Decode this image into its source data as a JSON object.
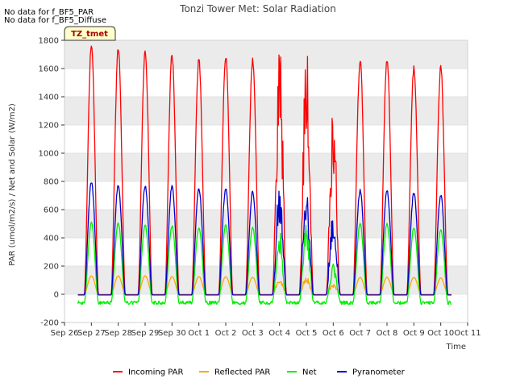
{
  "notes": [
    "No data for f_BF5_PAR",
    "No data for f_BF5_Diffuse"
  ],
  "tz_label": "TZ_tmet",
  "chart_data": {
    "type": "line",
    "title": "Tonzi Tower Met: Solar Radiation",
    "xlabel": "Time",
    "ylabel": "PAR (umol/m2/s) / Net and Solar (W/m2)",
    "ylim": [
      -200,
      1800
    ],
    "yticks": [
      -200,
      0,
      200,
      400,
      600,
      800,
      1000,
      1200,
      1400,
      1600,
      1800
    ],
    "xlim": [
      0,
      15
    ],
    "xtick_labels": [
      "Sep 26",
      "Sep 27",
      "Sep 28",
      "Sep 29",
      "Sep 30",
      "Oct 1",
      "Oct 2",
      "Oct 3",
      "Oct 4",
      "Oct 5",
      "Oct 6",
      "Oct 7",
      "Oct 8",
      "Oct 9",
      "Oct 10",
      "Oct 11"
    ],
    "grid": true,
    "legend_position": "bottom",
    "daily_peaks": [
      {
        "day": "Sep 27",
        "incoming_par": 1760,
        "reflected_par": 130,
        "net": 505,
        "pyranometer": 800
      },
      {
        "day": "Sep 28",
        "incoming_par": 1730,
        "reflected_par": 130,
        "net": 500,
        "pyranometer": 775
      },
      {
        "day": "Sep 29",
        "incoming_par": 1710,
        "reflected_par": 130,
        "net": 490,
        "pyranometer": 765
      },
      {
        "day": "Sep 30",
        "incoming_par": 1700,
        "reflected_par": 125,
        "net": 485,
        "pyranometer": 765
      },
      {
        "day": "Oct 1",
        "incoming_par": 1665,
        "reflected_par": 125,
        "net": 475,
        "pyranometer": 750
      },
      {
        "day": "Oct 2",
        "incoming_par": 1690,
        "reflected_par": 125,
        "net": 490,
        "pyranometer": 750
      },
      {
        "day": "Oct 3",
        "incoming_par": 1660,
        "reflected_par": 120,
        "net": 475,
        "pyranometer": 725
      },
      {
        "day": "Oct 4",
        "incoming_par": 1650,
        "reflected_par": 115,
        "net": 420,
        "pyranometer": 720
      },
      {
        "day": "Oct 5",
        "incoming_par": 1650,
        "reflected_par": 120,
        "net": 480,
        "pyranometer": 740
      },
      {
        "day": "Oct 6",
        "incoming_par": 1270,
        "reflected_par": 70,
        "net": 200,
        "pyranometer": 560
      },
      {
        "day": "Oct 7",
        "incoming_par": 1650,
        "reflected_par": 120,
        "net": 495,
        "pyranometer": 735
      },
      {
        "day": "Oct 8",
        "incoming_par": 1670,
        "reflected_par": 120,
        "net": 500,
        "pyranometer": 735
      },
      {
        "day": "Oct 9",
        "incoming_par": 1600,
        "reflected_par": 120,
        "net": 470,
        "pyranometer": 720
      },
      {
        "day": "Oct 10",
        "incoming_par": 1600,
        "reflected_par": 115,
        "net": 460,
        "pyranometer": 700
      }
    ],
    "night_baseline": {
      "incoming_par": -5,
      "reflected_par": 0,
      "net": -60,
      "pyranometer": -5
    },
    "series": [
      {
        "name": "Incoming PAR",
        "key": "incoming_par",
        "color": "#ff0000"
      },
      {
        "name": "Reflected PAR",
        "key": "reflected_par",
        "color": "#ffa500"
      },
      {
        "name": "Net",
        "key": "net",
        "color": "#00ee00"
      },
      {
        "name": "Pyranometer",
        "key": "pyranometer",
        "color": "#0000cc"
      }
    ]
  }
}
